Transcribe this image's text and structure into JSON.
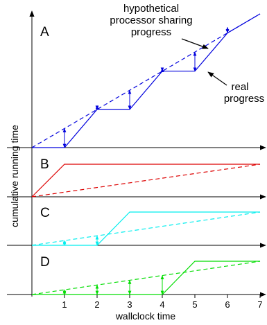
{
  "colors": {
    "axis": "#000000",
    "A": "#0000dd",
    "B": "#dd0000",
    "C": "#00eeee",
    "D": "#00dd00"
  },
  "chart_data": {
    "type": "line",
    "xlabel": "wallclock time",
    "ylabel": "cumulative running time",
    "x_ticks": [
      1,
      2,
      3,
      4,
      5,
      6,
      7
    ],
    "xlim": [
      0,
      7
    ],
    "grid": false,
    "panels": [
      {
        "label": "A",
        "color": "#0000dd",
        "ylim": [
          0,
          7
        ],
        "series": [
          {
            "style": "dashed",
            "points": [
              [
                0,
                0
              ],
              [
                7,
                7
              ]
            ]
          },
          {
            "style": "solid",
            "points": [
              [
                0,
                0
              ],
              [
                1,
                0
              ],
              [
                2,
                2
              ],
              [
                3,
                2
              ],
              [
                4,
                4
              ],
              [
                5,
                4
              ],
              [
                6,
                6
              ],
              [
                7,
                7
              ]
            ]
          }
        ],
        "gap_arrows": [
          {
            "x": 1,
            "from": 0,
            "to": 1
          },
          {
            "x": 2,
            "from": 2,
            "to": 2.2
          },
          {
            "x": 3,
            "from": 2,
            "to": 3
          },
          {
            "x": 4,
            "from": 4,
            "to": 4.15
          },
          {
            "x": 5,
            "from": 4,
            "to": 5
          },
          {
            "x": 6,
            "from": 6,
            "to": 6.3
          }
        ],
        "annotations": {
          "processor_sharing": "hypothetical\nprocessor sharing\nprogress",
          "real": "real\nprogress"
        }
      },
      {
        "label": "B",
        "color": "#dd0000",
        "ylim": [
          0,
          1
        ],
        "series": [
          {
            "style": "dashed",
            "points": [
              [
                0,
                0
              ],
              [
                7,
                1
              ]
            ]
          },
          {
            "style": "solid",
            "points": [
              [
                0,
                0
              ],
              [
                1,
                1
              ],
              [
                7,
                1
              ]
            ]
          }
        ],
        "gap_arrows": []
      },
      {
        "label": "C",
        "color": "#00eeee",
        "ylim": [
          0,
          1
        ],
        "series": [
          {
            "style": "dashed",
            "points": [
              [
                0,
                0
              ],
              [
                7,
                1
              ]
            ]
          },
          {
            "style": "solid",
            "points": [
              [
                0,
                0
              ],
              [
                2,
                0
              ],
              [
                3,
                1
              ],
              [
                7,
                1
              ]
            ]
          }
        ],
        "gap_arrows": [
          {
            "x": 1,
            "from": 0,
            "to": 0.143
          },
          {
            "x": 2,
            "from": 0,
            "to": 0.286
          }
        ]
      },
      {
        "label": "D",
        "color": "#00dd00",
        "ylim": [
          0,
          1
        ],
        "series": [
          {
            "style": "dashed",
            "points": [
              [
                0,
                0
              ],
              [
                7,
                1
              ]
            ]
          },
          {
            "style": "solid",
            "points": [
              [
                0,
                0
              ],
              [
                4,
                0
              ],
              [
                5,
                1
              ],
              [
                7,
                1
              ]
            ]
          }
        ],
        "gap_arrows": [
          {
            "x": 1,
            "from": 0,
            "to": 0.143
          },
          {
            "x": 2,
            "from": 0,
            "to": 0.286
          },
          {
            "x": 3,
            "from": 0,
            "to": 0.429
          },
          {
            "x": 4,
            "from": 0,
            "to": 0.571
          }
        ]
      }
    ]
  }
}
